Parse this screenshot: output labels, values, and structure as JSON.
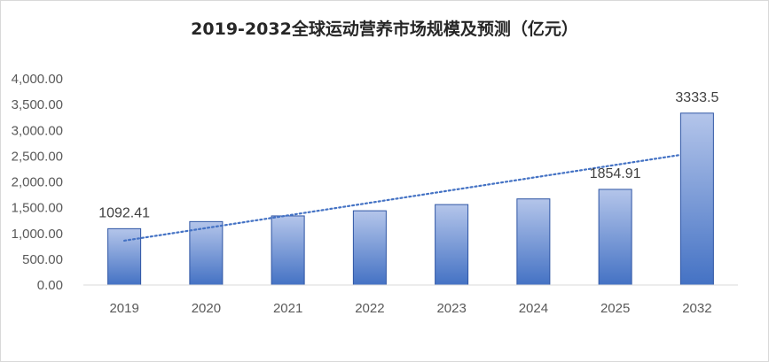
{
  "chart_data": {
    "type": "bar",
    "title": "2019-2032全球运动营养市场规模及预测（亿元）",
    "categories": [
      "2019",
      "2020",
      "2021",
      "2022",
      "2023",
      "2024",
      "2025",
      "2032"
    ],
    "values": [
      1092.41,
      1230,
      1340,
      1440,
      1560,
      1670,
      1854.91,
      3333.5
    ],
    "data_labels": [
      {
        "category": "2019",
        "text": "1092.41"
      },
      {
        "category": "2025",
        "text": "1854.91"
      },
      {
        "category": "2032",
        "text": "3333.5"
      }
    ],
    "y_ticks": [
      "0.00",
      "500.00",
      "1,000.00",
      "1,500.00",
      "2,000.00",
      "2,500.00",
      "3,000.00",
      "3,500.00",
      "4,000.00"
    ],
    "ylim": [
      0,
      4000
    ],
    "trendline": "linear",
    "grid": false,
    "colors": {
      "bar_top": "#b4c5ea",
      "bar_bottom": "#4472c4",
      "bar_border": "#2f55a4",
      "trendline": "#4472c4",
      "axis": "#d9d9d9"
    }
  }
}
